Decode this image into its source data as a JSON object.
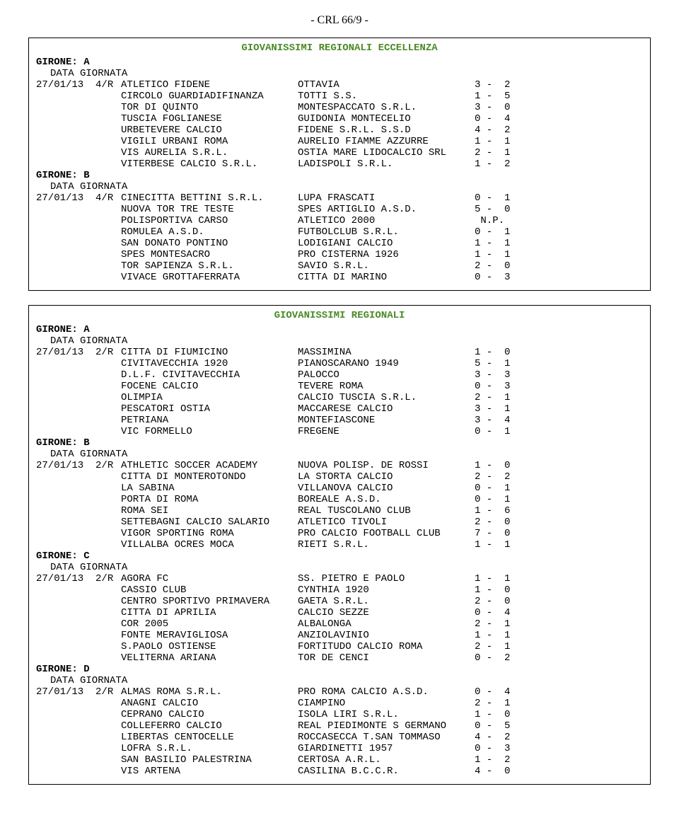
{
  "header": "- CRL 66/9 -",
  "sections": [
    {
      "title": "GIOVANISSIMI REGIONALI ECCELLENZA",
      "title_color": "#4a8a26",
      "groups": [
        {
          "label": "GIRONE:  A",
          "date_label": "DATA  GIORNATA",
          "rows": [
            {
              "date": "27/01/13  4/R",
              "team1": "ATLETICO FIDENE",
              "team2": "OTTAVIA",
              "score": "3 -  2"
            },
            {
              "date": "",
              "team1": "CIRCOLO GUARDIADIFINANZA",
              "team2": "TOTTI S.S.",
              "score": "1 -  5"
            },
            {
              "date": "",
              "team1": "TOR DI QUINTO",
              "team2": "MONTESPACCATO S.R.L.",
              "score": "3 -  0"
            },
            {
              "date": "",
              "team1": "TUSCIA FOGLIANESE",
              "team2": "GUIDONIA MONTECELIO",
              "score": "0 -  4"
            },
            {
              "date": "",
              "team1": "URBETEVERE CALCIO",
              "team2": "FIDENE S.R.L. S.S.D",
              "score": "4 -  2"
            },
            {
              "date": "",
              "team1": "VIGILI URBANI ROMA",
              "team2": "AURELIO FIAMME AZZURRE",
              "score": "1 -  1"
            },
            {
              "date": "",
              "team1": "VIS AURELIA S.R.L.",
              "team2": "OSTIA MARE LIDOCALCIO SRL",
              "score": "2 -  1"
            },
            {
              "date": "",
              "team1": "VITERBESE CALCIO S.R.L.",
              "team2": "LADISPOLI S.R.L.",
              "score": "1 -  2"
            }
          ]
        },
        {
          "label": "GIRONE:  B",
          "date_label": "DATA  GIORNATA",
          "rows": [
            {
              "date": "27/01/13  4/R",
              "team1": "CINECITTA BETTINI S.R.L.",
              "team2": "LUPA FRASCATI",
              "score": "0 -  1"
            },
            {
              "date": "",
              "team1": "NUOVA TOR TRE TESTE",
              "team2": "SPES ARTIGLIO A.S.D.",
              "score": "5 -  0"
            },
            {
              "date": "",
              "team1": "POLISPORTIVA CARSO",
              "team2": "ATLETICO 2000",
              "score": " N.P."
            },
            {
              "date": "",
              "team1": "ROMULEA A.S.D.",
              "team2": "FUTBOLCLUB S.R.L.",
              "score": "0 -  1"
            },
            {
              "date": "",
              "team1": "SAN DONATO PONTINO",
              "team2": "LODIGIANI CALCIO",
              "score": "1 -  1"
            },
            {
              "date": "",
              "team1": "SPES MONTESACRO",
              "team2": "PRO CISTERNA 1926",
              "score": "1 -  1"
            },
            {
              "date": "",
              "team1": "TOR SAPIENZA S.R.L.",
              "team2": "SAVIO S.R.L.",
              "score": "2 -  0"
            },
            {
              "date": "",
              "team1": "VIVACE GROTTAFERRATA",
              "team2": "CITTA DI MARINO",
              "score": "0 -  3"
            }
          ]
        }
      ]
    },
    {
      "title": "GIOVANISSIMI REGIONALI",
      "title_color": "#4a8a26",
      "groups": [
        {
          "label": "GIRONE:  A",
          "date_label": "DATA  GIORNATA",
          "rows": [
            {
              "date": "27/01/13  2/R",
              "team1": "CITTA DI FIUMICINO",
              "team2": "MASSIMINA",
              "score": "1 -  0"
            },
            {
              "date": "",
              "team1": "CIVITAVECCHIA 1920",
              "team2": "PIANOSCARANO 1949",
              "score": "5 -  1"
            },
            {
              "date": "",
              "team1": "D.L.F. CIVITAVECCHIA",
              "team2": "PALOCCO",
              "score": "3 -  3"
            },
            {
              "date": "",
              "team1": "FOCENE CALCIO",
              "team2": "TEVERE ROMA",
              "score": "0 -  3"
            },
            {
              "date": "",
              "team1": "OLIMPIA",
              "team2": "CALCIO TUSCIA S.R.L.",
              "score": "2 -  1"
            },
            {
              "date": "",
              "team1": "PESCATORI OSTIA",
              "team2": "MACCARESE CALCIO",
              "score": "3 -  1"
            },
            {
              "date": "",
              "team1": "PETRIANA",
              "team2": "MONTEFIASCONE",
              "score": "3 -  4"
            },
            {
              "date": "",
              "team1": "VIC FORMELLO",
              "team2": "FREGENE",
              "score": "0 -  1"
            }
          ]
        },
        {
          "label": "GIRONE:  B",
          "date_label": "DATA  GIORNATA",
          "rows": [
            {
              "date": "27/01/13  2/R",
              "team1": "ATHLETIC SOCCER ACADEMY",
              "team2": "NUOVA POLISP. DE ROSSI",
              "score": "1 -  0"
            },
            {
              "date": "",
              "team1": "CITTA DI MONTEROTONDO",
              "team2": "LA STORTA CALCIO",
              "score": "2 -  2"
            },
            {
              "date": "",
              "team1": "LA SABINA",
              "team2": "VILLANOVA CALCIO",
              "score": "0 -  1"
            },
            {
              "date": "",
              "team1": "PORTA DI ROMA",
              "team2": "BOREALE A.S.D.",
              "score": "0 -  1"
            },
            {
              "date": "",
              "team1": "ROMA SEI",
              "team2": "REAL TUSCOLANO CLUB",
              "score": "1 -  6"
            },
            {
              "date": "",
              "team1": "SETTEBAGNI CALCIO SALARIO",
              "team2": "ATLETICO TIVOLI",
              "score": "2 -  0"
            },
            {
              "date": "",
              "team1": "VIGOR SPORTING ROMA",
              "team2": "PRO CALCIO FOOTBALL CLUB",
              "score": "7 -  0"
            },
            {
              "date": "",
              "team1": "VILLALBA OCRES MOCA",
              "team2": "RIETI S.R.L.",
              "score": "1 -  1"
            }
          ]
        },
        {
          "label": "GIRONE:  C",
          "date_label": "DATA  GIORNATA",
          "rows": [
            {
              "date": "27/01/13  2/R",
              "team1": "AGORA FC",
              "team2": "SS. PIETRO E PAOLO",
              "score": "1 -  1"
            },
            {
              "date": "",
              "team1": "CASSIO CLUB",
              "team2": "CYNTHIA 1920",
              "score": "1 -  0"
            },
            {
              "date": "",
              "team1": "CENTRO SPORTIVO PRIMAVERA",
              "team2": "GAETA S.R.L.",
              "score": "2 -  0"
            },
            {
              "date": "",
              "team1": "CITTA DI APRILIA",
              "team2": "CALCIO SEZZE",
              "score": "0 -  4"
            },
            {
              "date": "",
              "team1": "COR 2005",
              "team2": "ALBALONGA",
              "score": "2 -  1"
            },
            {
              "date": "",
              "team1": "FONTE MERAVIGLIOSA",
              "team2": "ANZIOLAVINIO",
              "score": "1 -  1"
            },
            {
              "date": "",
              "team1": "S.PAOLO OSTIENSE",
              "team2": "FORTITUDO CALCIO ROMA",
              "score": "2 -  1"
            },
            {
              "date": "",
              "team1": "VELITERNA ARIANA",
              "team2": "TOR DE CENCI",
              "score": "0 -  2"
            }
          ]
        },
        {
          "label": "GIRONE:  D",
          "date_label": "DATA  GIORNATA",
          "rows": [
            {
              "date": "27/01/13  2/R",
              "team1": "ALMAS ROMA S.R.L.",
              "team2": "PRO ROMA CALCIO A.S.D.",
              "score": "0 -  4"
            },
            {
              "date": "",
              "team1": "ANAGNI CALCIO",
              "team2": "CIAMPINO",
              "score": "2 -  1"
            },
            {
              "date": "",
              "team1": "CEPRANO CALCIO",
              "team2": "ISOLA LIRI S.R.L.",
              "score": "1 -  0"
            },
            {
              "date": "",
              "team1": "COLLEFERRO CALCIO",
              "team2": "REAL PIEDIMONTE S GERMANO",
              "score": "0 -  5"
            },
            {
              "date": "",
              "team1": "LIBERTAS CENTOCELLE",
              "team2": "ROCCASECCA T.SAN TOMMASO",
              "score": "4 -  2"
            },
            {
              "date": "",
              "team1": "LOFRA S.R.L.",
              "team2": "GIARDINETTI 1957",
              "score": "0 -  3"
            },
            {
              "date": "",
              "team1": "SAN BASILIO PALESTRINA",
              "team2": "CERTOSA A.R.L.",
              "score": "1 -  2"
            },
            {
              "date": "",
              "team1": "VIS ARTENA",
              "team2": "CASILINA B.C.C.R.",
              "score": "4 -  0"
            }
          ]
        }
      ]
    }
  ]
}
